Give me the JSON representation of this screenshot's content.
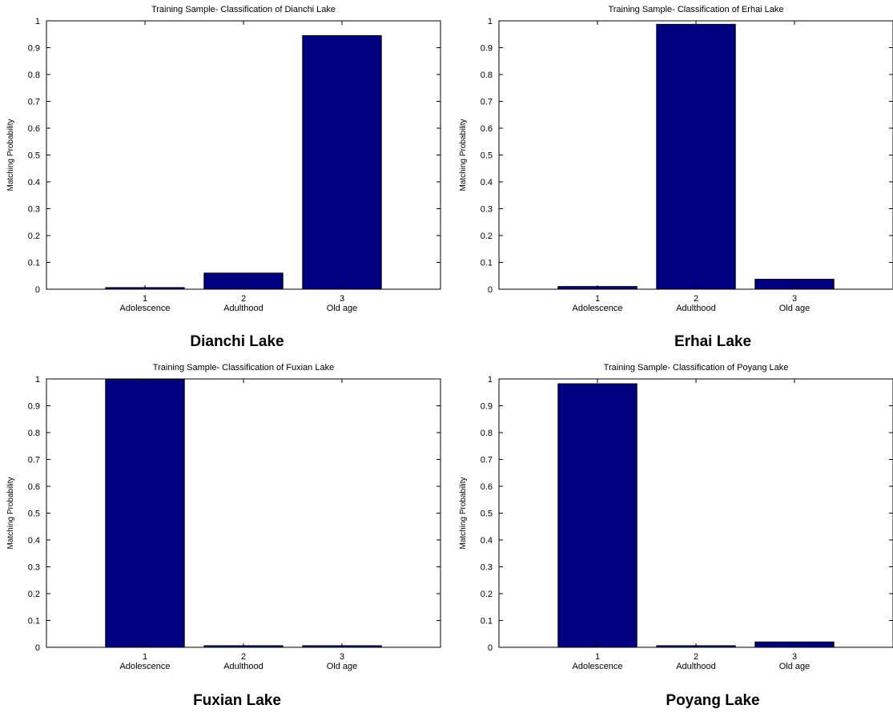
{
  "chart_data": [
    {
      "type": "bar",
      "title": "Training Sample- Classification of Dianchi Lake",
      "caption": "Dianchi Lake",
      "ylabel": "Matching Probability",
      "xlabel": "",
      "ticks_x": [
        "1",
        "2",
        "3"
      ],
      "categories": [
        "Adolescence",
        "Adulthood",
        "Old age"
      ],
      "values": [
        0.006,
        0.06,
        0.945
      ],
      "ylim": [
        0,
        1
      ],
      "yticks": [
        "0",
        "0.1",
        "0.2",
        "0.3",
        "0.4",
        "0.5",
        "0.6",
        "0.7",
        "0.8",
        "0.9",
        "1"
      ],
      "bar_color": "#000080"
    },
    {
      "type": "bar",
      "title": "Training Sample- Classification of Erhai Lake",
      "caption": "Erhai Lake",
      "ylabel": "Matching Probability",
      "xlabel": "",
      "ticks_x": [
        "1",
        "2",
        "3"
      ],
      "categories": [
        "Adolescence",
        "Adulthood",
        "Old age"
      ],
      "values": [
        0.01,
        0.987,
        0.037
      ],
      "ylim": [
        0,
        1
      ],
      "yticks": [
        "0",
        "0.1",
        "0.2",
        "0.3",
        "0.4",
        "0.5",
        "0.6",
        "0.7",
        "0.8",
        "0.9",
        "1"
      ],
      "bar_color": "#000080"
    },
    {
      "type": "bar",
      "title": "Training Sample- Classification of Fuxian Lake",
      "caption": "Fuxian Lake",
      "ylabel": "Matching Probability",
      "xlabel": "",
      "ticks_x": [
        "1",
        "2",
        "3"
      ],
      "categories": [
        "Adolescence",
        "Adulthood",
        "Old age"
      ],
      "values": [
        0.998,
        0.006,
        0.006
      ],
      "ylim": [
        0,
        1
      ],
      "yticks": [
        "0",
        "0.1",
        "0.2",
        "0.3",
        "0.4",
        "0.5",
        "0.6",
        "0.7",
        "0.8",
        "0.9",
        "1"
      ],
      "bar_color": "#000080"
    },
    {
      "type": "bar",
      "title": "Training Sample- Classification of Poyang Lake",
      "caption": "Poyang Lake",
      "ylabel": "Matching Probability",
      "xlabel": "",
      "ticks_x": [
        "1",
        "2",
        "3"
      ],
      "categories": [
        "Adolescence",
        "Adulthood",
        "Old age"
      ],
      "values": [
        0.982,
        0.006,
        0.02
      ],
      "ylim": [
        0,
        1
      ],
      "yticks": [
        "0",
        "0.1",
        "0.2",
        "0.3",
        "0.4",
        "0.5",
        "0.6",
        "0.7",
        "0.8",
        "0.9",
        "1"
      ],
      "bar_color": "#000080"
    }
  ]
}
